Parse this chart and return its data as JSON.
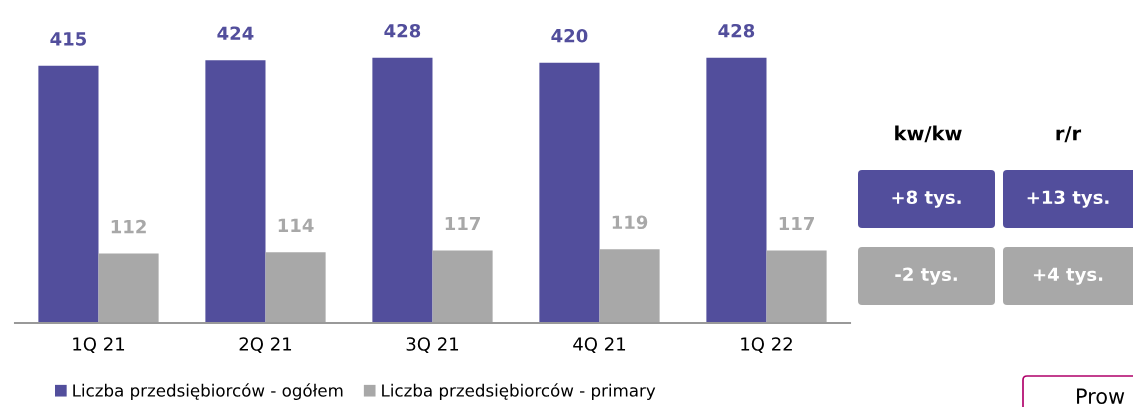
{
  "chart_data": [
    {
      "type": "bar",
      "categories": [
        "1Q 21",
        "2Q 21",
        "3Q 21",
        "4Q 21",
        "1Q 22"
      ],
      "series": [
        {
          "name": "Liczba przedsiębiorców - ogółem",
          "color": "#524e9c",
          "values": [
            415,
            424,
            428,
            420,
            428
          ]
        },
        {
          "name": "Liczba przedsiębiorców - primary",
          "color": "#a8a8a8",
          "values": [
            112,
            114,
            117,
            119,
            117
          ]
        }
      ],
      "data_labels": true,
      "legend": "bottom",
      "grid": false
    },
    {
      "type": "other",
      "annotations": [
        "kw/kw",
        "r/r",
        "+8 tys.",
        "+13 tys.",
        "-2 tys.",
        "+4 tys.",
        "Prow"
      ],
      "colors": [
        "#524e9c",
        "#a8a8a8"
      ]
    }
  ]
}
